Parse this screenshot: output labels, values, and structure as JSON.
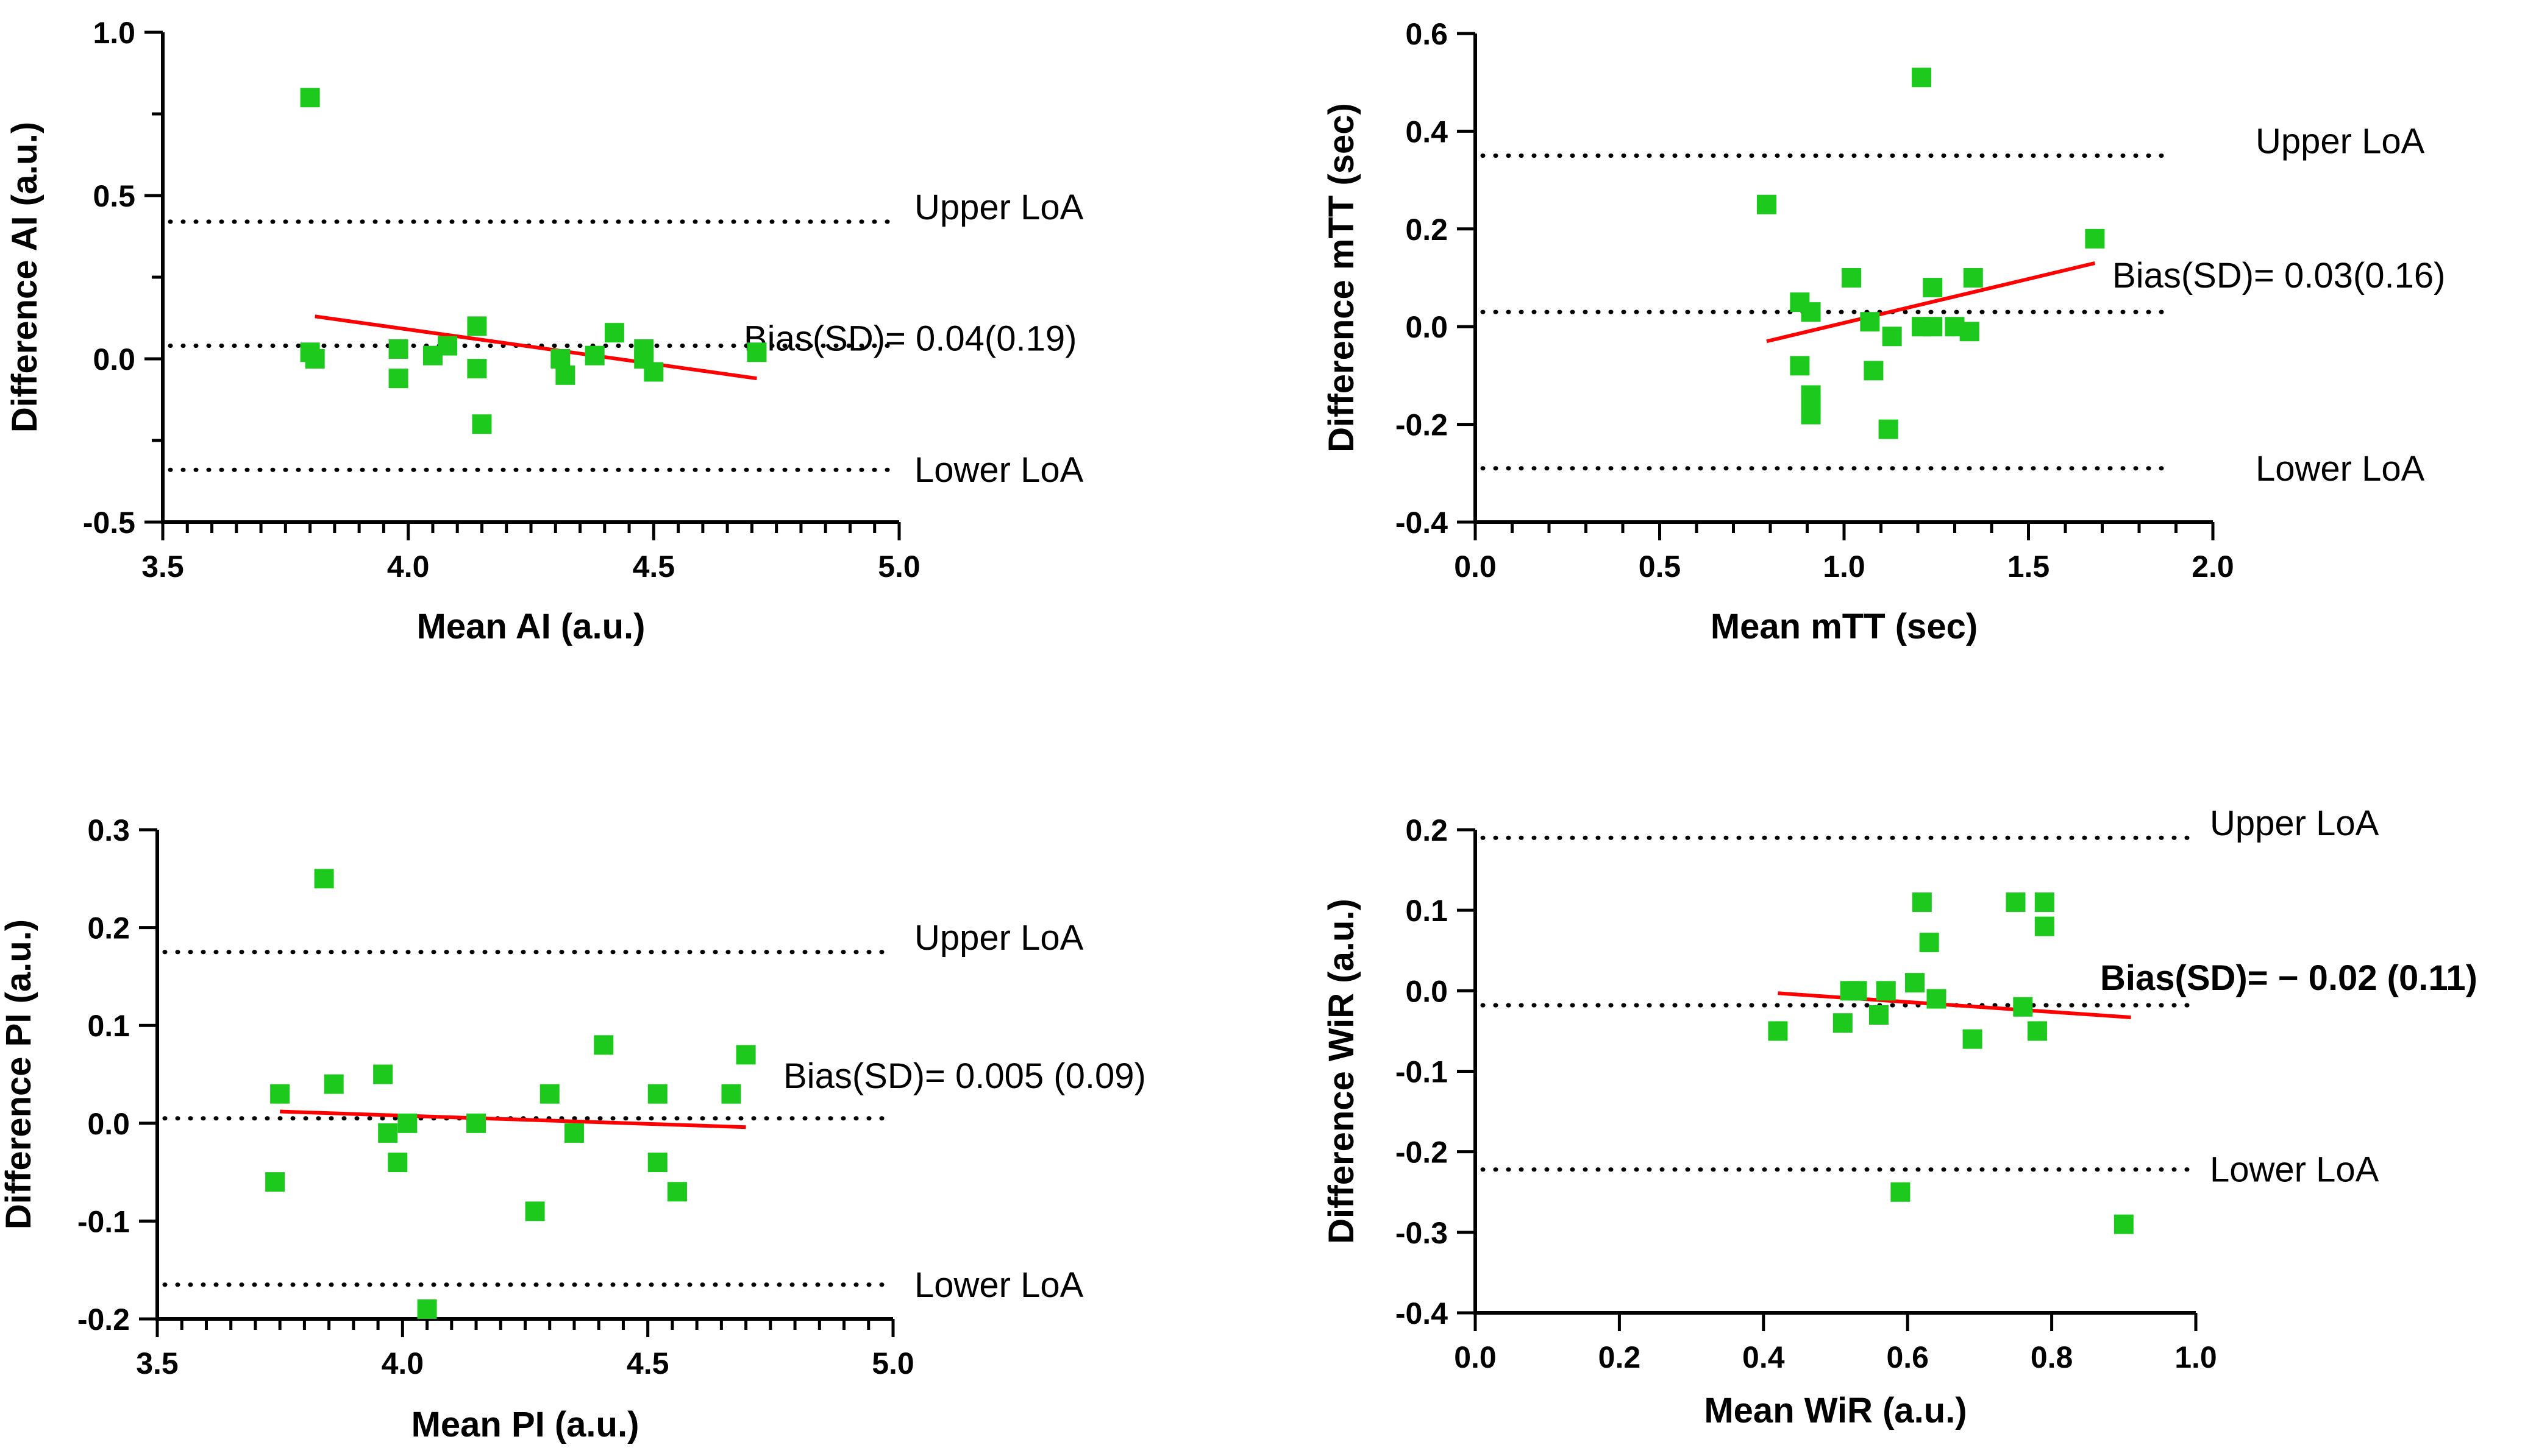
{
  "chart_data": [
    {
      "id": "ai",
      "type": "scatter",
      "xlabel": "Mean AI (a.u.)",
      "ylabel": "Difference AI (a.u.)",
      "xlim": [
        3.5,
        5.0
      ],
      "ylim": [
        -0.5,
        1.0
      ],
      "xticks": [
        "3.5",
        "4.0",
        "4.5",
        "5.0"
      ],
      "yticks": [
        "-0.5",
        "0.0",
        "0.5",
        "1.0"
      ],
      "xminor": 10,
      "yminor": 1,
      "upper_loa": 0.42,
      "bias": 0.04,
      "lower_loa": -0.34,
      "upper_label": "Upper LoA",
      "lower_label": "Lower LoA",
      "bias_label": "Bias(SD)= 0.04(0.19)",
      "bias_bold": false,
      "regression": {
        "x": [
          3.81,
          4.71
        ],
        "y": [
          0.13,
          -0.06
        ]
      },
      "points": [
        {
          "x": 3.8,
          "y": 0.8
        },
        {
          "x": 3.8,
          "y": 0.02
        },
        {
          "x": 3.81,
          "y": 0.0
        },
        {
          "x": 3.98,
          "y": 0.03
        },
        {
          "x": 3.98,
          "y": -0.06
        },
        {
          "x": 4.05,
          "y": 0.01
        },
        {
          "x": 4.08,
          "y": 0.04
        },
        {
          "x": 4.14,
          "y": 0.1
        },
        {
          "x": 4.14,
          "y": -0.03
        },
        {
          "x": 4.15,
          "y": -0.2
        },
        {
          "x": 4.31,
          "y": 0.0
        },
        {
          "x": 4.32,
          "y": -0.05
        },
        {
          "x": 4.38,
          "y": 0.01
        },
        {
          "x": 4.42,
          "y": 0.08
        },
        {
          "x": 4.48,
          "y": 0.03
        },
        {
          "x": 4.48,
          "y": 0.0
        },
        {
          "x": 4.5,
          "y": -0.04
        },
        {
          "x": 4.71,
          "y": 0.02
        }
      ]
    },
    {
      "id": "mtt",
      "type": "scatter",
      "xlabel": "Mean mTT (sec)",
      "ylabel": "Difference mTT (sec)",
      "xlim": [
        0.0,
        2.0
      ],
      "ylim": [
        -0.4,
        0.6
      ],
      "xticks": [
        "0.0",
        "0.5",
        "1.0",
        "1.5",
        "2.0"
      ],
      "yticks": [
        "-0.4",
        "-0.2",
        "0.0",
        "0.2",
        "0.4",
        "0.6"
      ],
      "xminor": 5,
      "yminor": 0,
      "upper_loa": 0.35,
      "bias": 0.03,
      "lower_loa": -0.29,
      "upper_label": "Upper LoA",
      "lower_label": "Lower LoA",
      "bias_label": "Bias(SD)= 0.03(0.16)",
      "bias_bold": false,
      "regression": {
        "x": [
          0.79,
          1.68
        ],
        "y": [
          -0.03,
          0.13
        ]
      },
      "points": [
        {
          "x": 1.21,
          "y": 0.51
        },
        {
          "x": 0.79,
          "y": 0.25
        },
        {
          "x": 1.68,
          "y": 0.18
        },
        {
          "x": 1.02,
          "y": 0.1
        },
        {
          "x": 1.35,
          "y": 0.1
        },
        {
          "x": 0.88,
          "y": 0.05
        },
        {
          "x": 0.91,
          "y": 0.03
        },
        {
          "x": 1.24,
          "y": 0.08
        },
        {
          "x": 1.07,
          "y": 0.01
        },
        {
          "x": 1.21,
          "y": 0.0
        },
        {
          "x": 1.24,
          "y": 0.0
        },
        {
          "x": 1.3,
          "y": 0.0
        },
        {
          "x": 1.34,
          "y": -0.01
        },
        {
          "x": 1.13,
          "y": -0.02
        },
        {
          "x": 0.88,
          "y": -0.08
        },
        {
          "x": 1.08,
          "y": -0.09
        },
        {
          "x": 0.91,
          "y": -0.14
        },
        {
          "x": 0.91,
          "y": -0.16
        },
        {
          "x": 0.91,
          "y": -0.18
        },
        {
          "x": 1.12,
          "y": -0.21
        }
      ]
    },
    {
      "id": "pi",
      "type": "scatter",
      "xlabel": "Mean PI (a.u.)",
      "ylabel": "Difference PI (a.u.)",
      "xlim": [
        3.5,
        5.0
      ],
      "ylim": [
        -0.2,
        0.3
      ],
      "xticks": [
        "3.5",
        "4.0",
        "4.5",
        "5.0"
      ],
      "yticks": [
        "-0.2",
        "-0.1",
        "0.0",
        "0.1",
        "0.2",
        "0.3"
      ],
      "xminor": 10,
      "yminor": 0,
      "upper_loa": 0.175,
      "bias": 0.005,
      "lower_loa": -0.165,
      "upper_label": "Upper LoA",
      "lower_label": "Lower LoA",
      "bias_label": "Bias(SD)= 0.005 (0.09)",
      "bias_bold": false,
      "regression": {
        "x": [
          3.75,
          4.7
        ],
        "y": [
          0.012,
          -0.004
        ]
      },
      "points": [
        {
          "x": 3.84,
          "y": 0.25
        },
        {
          "x": 3.75,
          "y": 0.03
        },
        {
          "x": 3.86,
          "y": 0.04
        },
        {
          "x": 3.96,
          "y": 0.05
        },
        {
          "x": 3.97,
          "y": -0.01
        },
        {
          "x": 4.01,
          "y": 0.0
        },
        {
          "x": 3.99,
          "y": -0.04
        },
        {
          "x": 3.74,
          "y": -0.06
        },
        {
          "x": 4.15,
          "y": 0.0
        },
        {
          "x": 4.05,
          "y": -0.19
        },
        {
          "x": 4.27,
          "y": -0.09
        },
        {
          "x": 4.3,
          "y": 0.03
        },
        {
          "x": 4.35,
          "y": -0.01
        },
        {
          "x": 4.41,
          "y": 0.08
        },
        {
          "x": 4.52,
          "y": 0.03
        },
        {
          "x": 4.52,
          "y": -0.04
        },
        {
          "x": 4.56,
          "y": -0.07
        },
        {
          "x": 4.67,
          "y": 0.03
        },
        {
          "x": 4.7,
          "y": 0.07
        }
      ]
    },
    {
      "id": "wir",
      "type": "scatter",
      "xlabel": "Mean WiR (a.u.)",
      "ylabel": "Difference WiR (a.u.)",
      "xlim": [
        0.0,
        1.0
      ],
      "ylim": [
        -0.4,
        0.2
      ],
      "xticks": [
        "0.0",
        "0.2",
        "0.4",
        "0.6",
        "0.8",
        "1.0"
      ],
      "yticks": [
        "-0.4",
        "-0.3",
        "-0.2",
        "-0.1",
        "0.0",
        "0.1",
        "0.2"
      ],
      "xminor": 0,
      "yminor": 0,
      "upper_loa": 0.19,
      "bias": -0.018,
      "lower_loa": -0.222,
      "upper_label": "Upper LoA",
      "lower_label": "Lower LoA",
      "bias_label": "Bias(SD)= − 0.02 (0.11)",
      "bias_bold": true,
      "regression": {
        "x": [
          0.42,
          0.91
        ],
        "y": [
          -0.003,
          -0.033
        ]
      },
      "points": [
        {
          "x": 0.62,
          "y": 0.11
        },
        {
          "x": 0.75,
          "y": 0.11
        },
        {
          "x": 0.79,
          "y": 0.11
        },
        {
          "x": 0.79,
          "y": 0.08
        },
        {
          "x": 0.63,
          "y": 0.06
        },
        {
          "x": 0.52,
          "y": 0.0
        },
        {
          "x": 0.53,
          "y": 0.0
        },
        {
          "x": 0.57,
          "y": 0.0
        },
        {
          "x": 0.61,
          "y": 0.01
        },
        {
          "x": 0.64,
          "y": -0.01
        },
        {
          "x": 0.76,
          "y": -0.02
        },
        {
          "x": 0.56,
          "y": -0.03
        },
        {
          "x": 0.51,
          "y": -0.04
        },
        {
          "x": 0.42,
          "y": -0.05
        },
        {
          "x": 0.78,
          "y": -0.05
        },
        {
          "x": 0.69,
          "y": -0.06
        },
        {
          "x": 0.59,
          "y": -0.25
        },
        {
          "x": 0.9,
          "y": -0.29
        }
      ]
    }
  ]
}
